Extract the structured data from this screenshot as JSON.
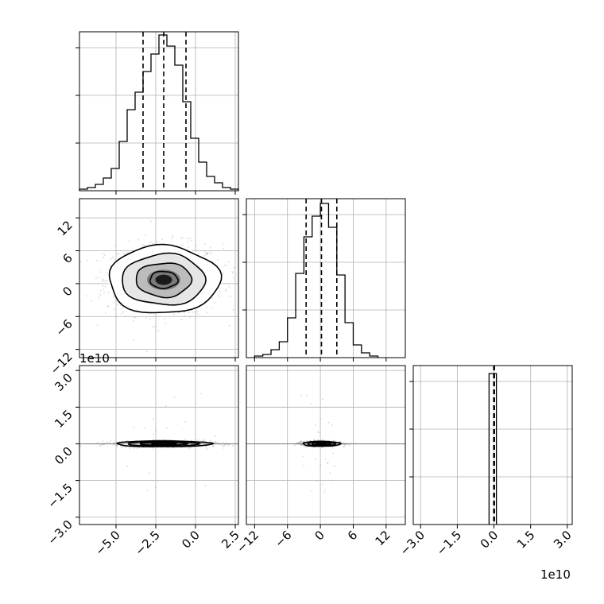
{
  "figure": {
    "y_offset_text": "1e10",
    "x_offset_text": "1e10"
  },
  "chart_data": {
    "type": "corner",
    "parameters": [
      {
        "ticks": [
          -5.0,
          -2.5,
          0.0,
          2.5
        ],
        "tick_labels": [
          "−5.0",
          "−2.5",
          "0.0",
          "2.5"
        ],
        "range": [
          -7.3,
          2.7
        ],
        "quantiles": [
          -3.3,
          -2.0,
          -0.6
        ]
      },
      {
        "ticks": [
          -12,
          -6,
          0,
          6,
          12
        ],
        "tick_labels": [
          "−12",
          "−6",
          "0",
          "6",
          "12"
        ],
        "range": [
          -13.5,
          15.5
        ],
        "quantiles": [
          -2.6,
          0.2,
          3.0
        ]
      },
      {
        "ticks": [
          -3.0,
          -1.5,
          0.0,
          1.5,
          3.0
        ],
        "tick_labels": [
          "−3.0",
          "−1.5",
          "0.0",
          "1.5",
          "3.0"
        ],
        "range": [
          -3.3,
          3.2
        ],
        "quantiles": [
          -0.01,
          -0.005,
          0.02
        ],
        "offset_exponent": "1e10"
      }
    ],
    "histograms": [
      {
        "parameter": 0,
        "bin_edges": [
          -7.3,
          -6.8,
          -6.3,
          -5.8,
          -5.3,
          -4.8,
          -4.3,
          -3.8,
          -3.3,
          -2.8,
          -2.3,
          -1.8,
          -1.3,
          -0.8,
          -0.3,
          0.2,
          0.7,
          1.2,
          1.7,
          2.2,
          2.7
        ],
        "counts": [
          0.01,
          0.02,
          0.04,
          0.08,
          0.14,
          0.31,
          0.51,
          0.62,
          0.75,
          0.86,
          0.98,
          0.91,
          0.79,
          0.56,
          0.33,
          0.18,
          0.09,
          0.05,
          0.02,
          0.01
        ]
      },
      {
        "parameter": 1,
        "bin_edges": [
          -12,
          -10.5,
          -9,
          -7.5,
          -6,
          -4.5,
          -3,
          -1.5,
          0,
          1.5,
          3,
          4.5,
          6,
          7.5,
          9,
          10.5
        ],
        "counts": [
          0.01,
          0.02,
          0.05,
          0.1,
          0.25,
          0.53,
          0.76,
          0.89,
          0.97,
          0.82,
          0.52,
          0.22,
          0.08,
          0.03,
          0.01
        ]
      },
      {
        "parameter": 2,
        "bin_edges": [
          -0.2,
          0.0,
          0.1
        ],
        "counts": [
          0.95,
          0.95
        ]
      }
    ],
    "contour_panels": [
      {
        "x_param": 0,
        "y_param": 1,
        "center": [
          -2.0,
          0.7
        ],
        "sigma": [
          1.75,
          3.1
        ],
        "levels_nsigma": [
          0.5,
          1.0,
          1.5,
          2.0
        ]
      },
      {
        "x_param": 0,
        "y_param": 2,
        "center": [
          -2.0,
          0.0
        ],
        "sigma": [
          1.5,
          0.06
        ],
        "levels_nsigma": [
          0.5,
          1.0,
          1.5,
          2.0
        ]
      },
      {
        "x_param": 1,
        "y_param": 2,
        "center": [
          0.2,
          0.0
        ],
        "sigma": [
          1.7,
          0.05
        ],
        "levels_nsigma": [
          0.5,
          1.0,
          1.5,
          2.0
        ]
      }
    ],
    "grid": true,
    "colors": {
      "line": "#000000",
      "grid": "#b0b0b0",
      "points": "#a9a9a9"
    }
  }
}
